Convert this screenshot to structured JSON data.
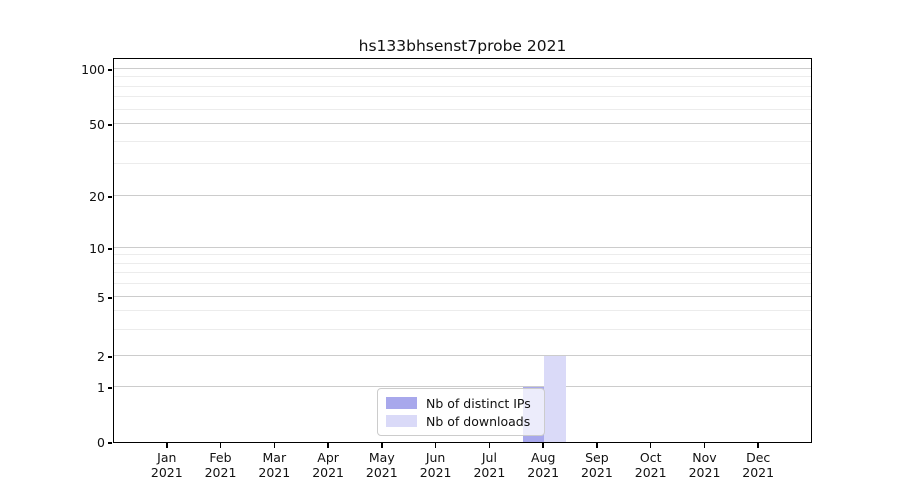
{
  "chart_data": {
    "type": "bar",
    "title": "hs133bhsenst7probe 2021",
    "categories": [
      "Jan 2021",
      "Feb 2021",
      "Mar 2021",
      "Apr 2021",
      "May 2021",
      "Jun 2021",
      "Jul 2021",
      "Aug 2021",
      "Sep 2021",
      "Oct 2021",
      "Nov 2021",
      "Dec 2021"
    ],
    "series": [
      {
        "name": "Nb of distinct IPs",
        "color": "#a8a8ec",
        "values": [
          0,
          0,
          0,
          0,
          0,
          0,
          0,
          1,
          0,
          0,
          0,
          0
        ]
      },
      {
        "name": "Nb of downloads",
        "color": "#dadaf8",
        "values": [
          0,
          0,
          0,
          0,
          0,
          0,
          0,
          2,
          0,
          0,
          0,
          0
        ]
      }
    ],
    "xlabel": "",
    "ylabel": "",
    "yscale": "symlog",
    "ylim": [
      0,
      110
    ],
    "yticks_major": [
      0,
      1,
      2,
      5,
      10,
      20,
      50,
      100
    ],
    "yticks_minor": [
      3,
      4,
      6,
      7,
      8,
      9,
      30,
      40,
      60,
      70,
      80,
      90
    ],
    "grid": "horizontal",
    "legend_position": "lower center",
    "bar_values_visible": {
      "Aug 2021": {
        "Nb of distinct IPs": 1,
        "Nb of downloads": 2
      }
    }
  },
  "colors": {
    "distinct_ips": "#a8a8ec",
    "downloads": "#dadaf8",
    "grid_major": "#cccccc",
    "grid_minor": "#ececec",
    "axis": "#000000",
    "text": "#111111"
  }
}
